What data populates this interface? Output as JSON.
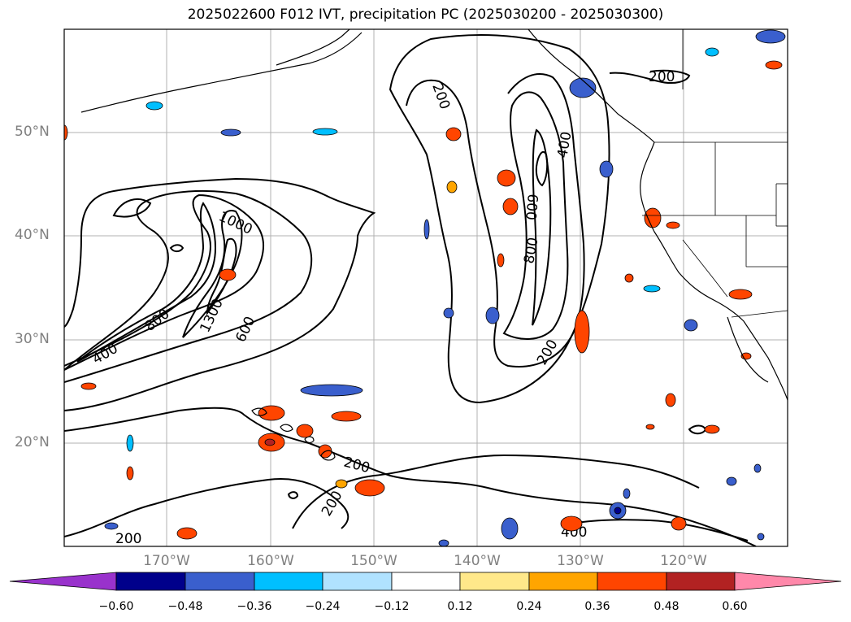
{
  "title": "2025022600 F012 IVT, precipitation PC (2025030200 - 2025030300)",
  "map": {
    "lat_labels": [
      {
        "text": "50°N",
        "lat": 50
      },
      {
        "text": "40°N",
        "lat": 40
      },
      {
        "text": "30°N",
        "lat": 30
      },
      {
        "text": "20°N",
        "lat": 20
      }
    ],
    "lon_labels": [
      {
        "text": "170°W",
        "lon": -170
      },
      {
        "text": "160°W",
        "lon": -160
      },
      {
        "text": "150°W",
        "lon": -150
      },
      {
        "text": "140°W",
        "lon": -140
      },
      {
        "text": "130°W",
        "lon": -130
      },
      {
        "text": "120°W",
        "lon": -120
      }
    ],
    "contour_labels": [
      "200",
      "400",
      "600",
      "800",
      "1000",
      "1300"
    ],
    "gridlines": true
  },
  "colorbar": {
    "ticks": [
      "−0.60",
      "−0.48",
      "−0.36",
      "−0.24",
      "−0.12",
      "0.12",
      "0.24",
      "0.36",
      "0.48",
      "0.60"
    ],
    "colors": [
      "#9932cc",
      "#00008b",
      "#3a5fcd",
      "#00bfff",
      "#b0e2ff",
      "#ffffff",
      "#ffe88a",
      "#ffa500",
      "#ff4500",
      "#b22222",
      "#ff88aa"
    ],
    "extend": "both"
  }
}
